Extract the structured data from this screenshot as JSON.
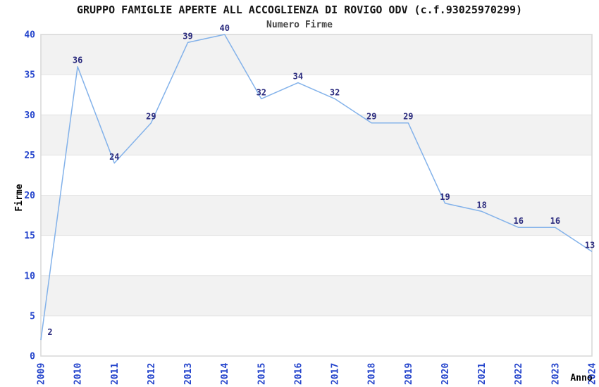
{
  "chart_data": {
    "type": "line",
    "title": "GRUPPO FAMIGLIE APERTE ALL ACCOGLIENZA DI ROVIGO ODV (c.f.93025970299)",
    "subtitle": "Numero Firme",
    "xlabel": "Anno",
    "ylabel": "Firme",
    "categories": [
      "2009",
      "2010",
      "2011",
      "2012",
      "2013",
      "2014",
      "2015",
      "2016",
      "2017",
      "2018",
      "2019",
      "2020",
      "2021",
      "2022",
      "2023",
      "2024"
    ],
    "values": [
      2,
      36,
      24,
      29,
      39,
      40,
      32,
      34,
      32,
      29,
      29,
      19,
      18,
      16,
      16,
      13
    ],
    "ylim": [
      0,
      40
    ],
    "yticks": [
      0,
      5,
      10,
      15,
      20,
      25,
      30,
      35,
      40
    ],
    "gray_bands": [
      [
        5,
        10
      ],
      [
        15,
        20
      ],
      [
        25,
        30
      ],
      [
        35,
        40
      ]
    ],
    "legend": "none",
    "grid": "horizontal",
    "colors": {
      "line": "#83b2ea",
      "tick_label": "#2545cc",
      "data_label": "#2b2b7e",
      "band": "#f2f2f2",
      "gridline": "#e4e4e4",
      "frame": "#d7d7d7"
    }
  }
}
